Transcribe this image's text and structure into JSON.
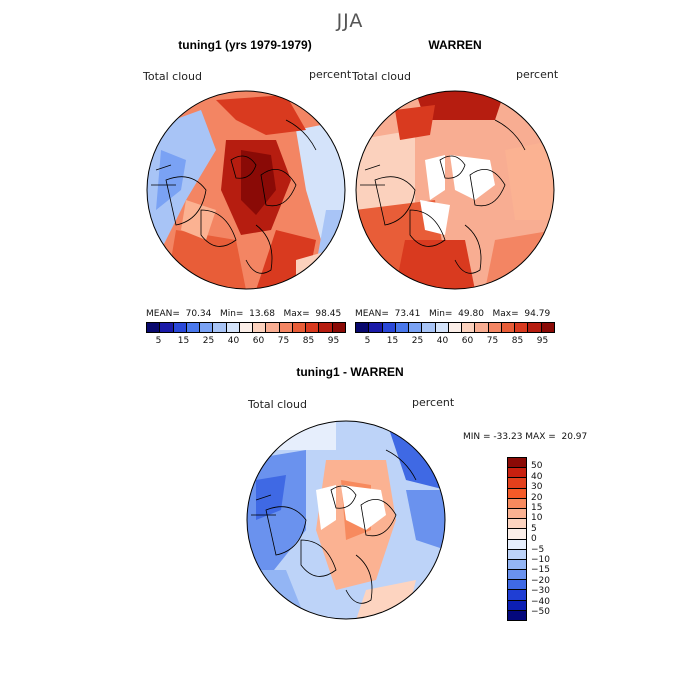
{
  "title": "JJA",
  "panels": {
    "left": {
      "title": "tuning1 (yrs 1979-1979)",
      "variable": "Total cloud",
      "units": "percent",
      "stats": "MEAN=  70.34   Min=  13.68   Max=  98.45"
    },
    "right": {
      "title": "WARREN",
      "variable": "Total cloud",
      "units": "percent",
      "stats": "MEAN=  73.41   Min=  49.80   Max=  94.79"
    },
    "diff": {
      "title": "tuning1 - WARREN",
      "variable": "Total cloud",
      "units": "percent",
      "stats": "MIN = -33.23 MAX =  20.97"
    }
  },
  "colorbar_abs": {
    "ticks": [
      "5",
      "15",
      "25",
      "40",
      "60",
      "75",
      "85",
      "95"
    ],
    "colors": [
      "#08086e",
      "#1a1aa8",
      "#2a48d8",
      "#4a78ec",
      "#7aa2f4",
      "#a8c4f6",
      "#d4e3fa",
      "#fbeee8",
      "#fbd1bd",
      "#f8ad92",
      "#f38563",
      "#e85d38",
      "#d93a1f",
      "#b61d10",
      "#8a0a06"
    ]
  },
  "colorbar_diff": {
    "ticks": [
      "50",
      "40",
      "30",
      "20",
      "15",
      "10",
      "5",
      "0",
      "−5",
      "−10",
      "−15",
      "−20",
      "−30",
      "−40",
      "−50"
    ],
    "colors": [
      "#8a0a06",
      "#c8200f",
      "#e3401c",
      "#f45a28",
      "#f78a5e",
      "#fbb292",
      "#fdd4c0",
      "#fbeee8",
      "#e6eefc",
      "#bdd3f8",
      "#93b5f4",
      "#6a92ee",
      "#3f69e4",
      "#1f3ed4",
      "#0c1fb4",
      "#04087c"
    ]
  }
}
